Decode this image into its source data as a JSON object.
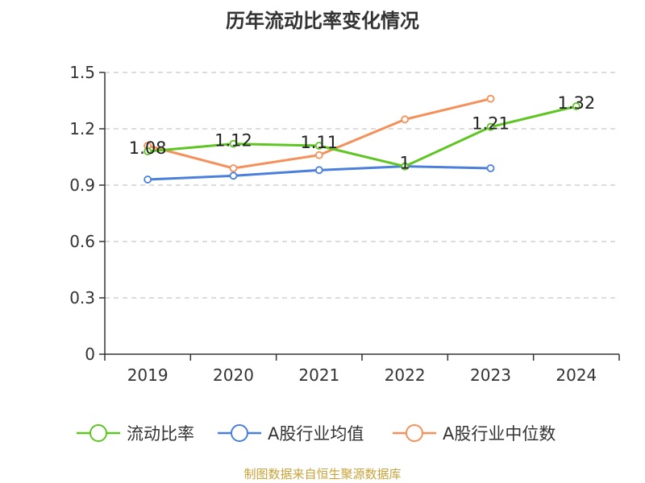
{
  "page": {
    "title": "历年流动比率变化情况",
    "source": "制图数据来自恒生聚源数据库"
  },
  "chart_data": {
    "type": "line",
    "title": "历年流动比率变化情况",
    "categories": [
      "2019",
      "2020",
      "2021",
      "2022",
      "2023",
      "2024"
    ],
    "ylim": [
      0,
      1.5
    ],
    "yticks": [
      "0",
      "0.3",
      "0.6",
      "0.9",
      "1.2",
      "1.5"
    ],
    "grid": true,
    "legend_position": "bottom",
    "series": [
      {
        "name": "流动比率",
        "color": "#5ec522",
        "values": [
          1.08,
          1.12,
          1.11,
          1.0,
          1.21,
          1.32
        ],
        "labels": [
          "1.08",
          "1.12",
          "1.11",
          "1",
          "1.21",
          "1.32"
        ]
      },
      {
        "name": "A股行业均值",
        "color": "#4a7fdb",
        "values": [
          0.93,
          0.95,
          0.98,
          1.0,
          0.99,
          null
        ]
      },
      {
        "name": "A股行业中位数",
        "color": "#f5905a",
        "values": [
          1.11,
          0.99,
          1.06,
          1.25,
          1.36,
          null
        ]
      }
    ]
  }
}
